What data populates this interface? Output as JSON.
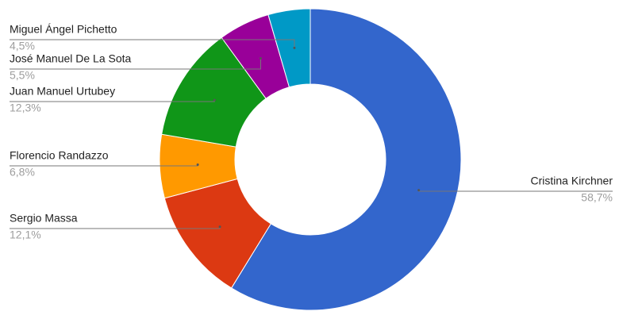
{
  "chart_data": {
    "type": "donut",
    "categories": [
      "Cristina Kirchner",
      "Sergio Massa",
      "Florencio Randazzo",
      "Juan Manuel Urtubey",
      "José Manuel De La Sota",
      "Miguel Ángel Pichetto"
    ],
    "values": [
      58.7,
      12.1,
      6.8,
      12.3,
      5.5,
      4.5
    ],
    "value_labels": [
      "58,7%",
      "12,1%",
      "6,8%",
      "12,3%",
      "5,5%",
      "4,5%"
    ],
    "colors": [
      "#3366cc",
      "#dc3912",
      "#ff9900",
      "#109618",
      "#990099",
      "#0099c6"
    ]
  }
}
